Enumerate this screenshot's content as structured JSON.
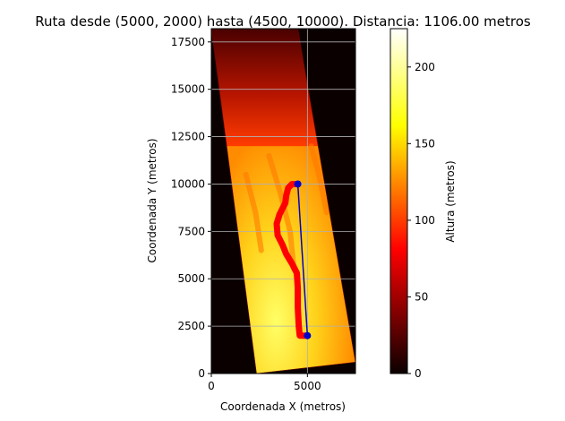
{
  "chart_data": {
    "type": "heatmap",
    "title": "Ruta desde (5000, 2000) hasta (4500, 10000). Distancia: 1106.00 metros",
    "xlabel": "Coordenada X (metros)",
    "ylabel": "Coordenada Y (metros)",
    "xlim": [
      0,
      7500
    ],
    "ylim": [
      0,
      18200
    ],
    "xticks": [
      0,
      5000
    ],
    "yticks": [
      0,
      2500,
      5000,
      7500,
      10000,
      12500,
      15000,
      17500
    ],
    "grid": true,
    "colormap": "hot",
    "colorbar": {
      "label": "Altura (metros)",
      "ticks": [
        0,
        50,
        100,
        150,
        200
      ],
      "range": [
        0,
        225
      ]
    },
    "raster_corners": [
      [
        2350,
        0
      ],
      [
        7500,
        600
      ],
      [
        4500,
        18200
      ],
      [
        0,
        18200
      ]
    ],
    "route": {
      "start": [
        5000,
        2000
      ],
      "end": [
        4500,
        10000
      ],
      "color": "#0000cc",
      "path": [
        [
          5000,
          2000
        ],
        [
          4600,
          2000
        ],
        [
          4550,
          2500
        ],
        [
          4500,
          3500
        ],
        [
          4500,
          4500
        ],
        [
          4450,
          5300
        ],
        [
          4200,
          5800
        ],
        [
          3900,
          6300
        ],
        [
          3700,
          6800
        ],
        [
          3450,
          7300
        ],
        [
          3400,
          7900
        ],
        [
          3550,
          8400
        ],
        [
          3700,
          8700
        ],
        [
          3850,
          9000
        ],
        [
          3900,
          9400
        ],
        [
          4000,
          9800
        ],
        [
          4200,
          10000
        ],
        [
          4500,
          10000
        ]
      ],
      "path_color": "#ff0000"
    }
  }
}
